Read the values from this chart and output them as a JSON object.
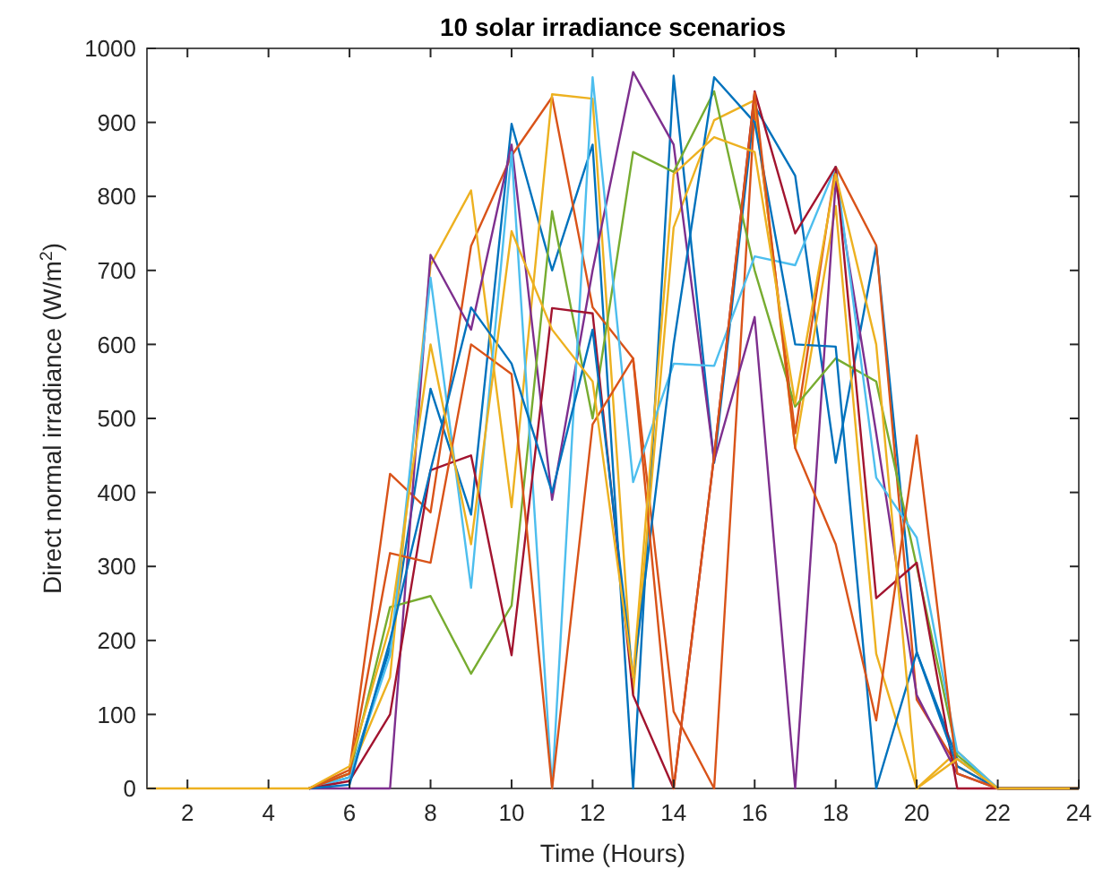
{
  "chart_data": {
    "type": "line",
    "title": "10 solar irradiance scenarios",
    "xlabel": "Time (Hours)",
    "ylabel": "Direct normal irradiance (W/m$^{2}$)",
    "x": [
      1,
      2,
      3,
      4,
      5,
      6,
      7,
      8,
      9,
      10,
      11,
      12,
      13,
      14,
      15,
      16,
      17,
      18,
      19,
      20,
      21,
      22,
      23,
      24
    ],
    "xlim": [
      1,
      24
    ],
    "xticks": [
      2,
      4,
      6,
      8,
      10,
      12,
      14,
      16,
      18,
      20,
      22,
      24
    ],
    "ylim": [
      0,
      1000
    ],
    "yticks": [
      0,
      100,
      200,
      300,
      400,
      500,
      600,
      700,
      800,
      900,
      1000
    ],
    "grid": false,
    "marker": "none",
    "line_style": "solid",
    "series": [
      {
        "color": "#0072bd",
        "values": [
          null,
          null,
          null,
          null,
          0,
          15,
          190,
          540,
          370,
          898,
          700,
          870,
          0,
          963,
          440,
          922,
          828,
          440,
          733,
          184,
          40,
          0,
          0,
          0
        ]
      },
      {
        "color": "#d95319",
        "values": [
          null,
          null,
          null,
          null,
          0,
          25,
          425,
          373,
          733,
          855,
          934,
          650,
          581,
          104,
          0,
          920,
          480,
          840,
          734,
          120,
          30,
          0,
          0,
          0
        ]
      },
      {
        "color": "#edb120",
        "values": [
          null,
          null,
          null,
          null,
          0,
          20,
          150,
          707,
          808,
          380,
          938,
          932,
          128,
          758,
          903,
          930,
          460,
          787,
          182,
          0,
          50,
          0,
          0,
          0
        ]
      },
      {
        "color": "#7e2f8e",
        "values": [
          null,
          null,
          null,
          null,
          0,
          0,
          0,
          721,
          620,
          870,
          390,
          700,
          968,
          870,
          443,
          637,
          0,
          820,
          480,
          126,
          20,
          0,
          0,
          0
        ]
      },
      {
        "color": "#77ac30",
        "values": [
          null,
          null,
          null,
          null,
          0,
          20,
          245,
          260,
          155,
          247,
          780,
          500,
          860,
          833,
          942,
          700,
          516,
          581,
          550,
          300,
          45,
          0,
          0,
          0
        ]
      },
      {
        "color": "#4dbeee",
        "values": [
          null,
          null,
          null,
          null,
          0,
          15,
          180,
          690,
          271,
          860,
          0,
          961,
          414,
          574,
          571,
          719,
          707,
          840,
          420,
          339,
          50,
          0,
          0,
          0
        ]
      },
      {
        "color": "#a2142f",
        "values": [
          null,
          null,
          null,
          null,
          0,
          10,
          100,
          430,
          450,
          180,
          649,
          642,
          126,
          0,
          450,
          942,
          750,
          840,
          257,
          305,
          0,
          0,
          0,
          0
        ]
      },
      {
        "color": "#0072bd",
        "values": [
          null,
          null,
          null,
          null,
          0,
          5,
          200,
          430,
          650,
          574,
          400,
          620,
          150,
          600,
          961,
          900,
          600,
          597,
          0,
          184,
          30,
          0,
          0,
          0
        ]
      },
      {
        "color": "#d95319",
        "values": [
          null,
          null,
          null,
          null,
          0,
          20,
          318,
          305,
          600,
          560,
          0,
          492,
          581,
          0,
          450,
          940,
          460,
          330,
          92,
          477,
          20,
          0,
          0,
          0
        ]
      },
      {
        "color": "#edb120",
        "values": [
          0,
          0,
          0,
          0,
          0,
          30,
          220,
          600,
          330,
          753,
          620,
          550,
          150,
          830,
          880,
          860,
          520,
          830,
          600,
          0,
          40,
          0,
          0,
          0
        ]
      }
    ]
  }
}
